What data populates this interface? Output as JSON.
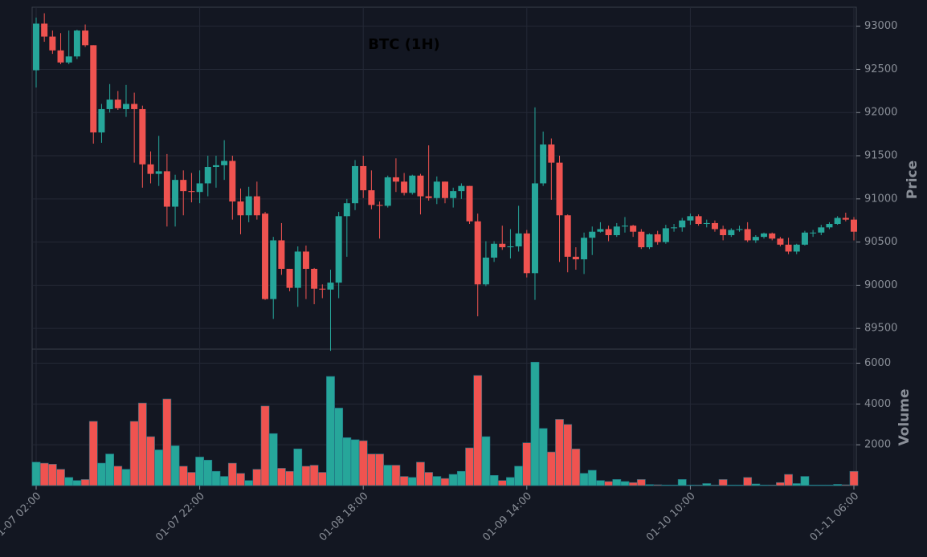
{
  "chart_data": {
    "type": "candlestick",
    "title": "BTC (1H)",
    "ylabel": "Price",
    "categories": [
      "01-07 02:00",
      null,
      null,
      null,
      null,
      null,
      null,
      null,
      null,
      null,
      null,
      null,
      null,
      null,
      null,
      null,
      null,
      null,
      null,
      null,
      "01-07 22:00",
      null,
      null,
      null,
      null,
      null,
      null,
      null,
      null,
      null,
      null,
      null,
      null,
      null,
      null,
      null,
      null,
      null,
      null,
      null,
      "01-08 18:00",
      null,
      null,
      null,
      null,
      null,
      null,
      null,
      null,
      null,
      null,
      null,
      null,
      null,
      null,
      null,
      null,
      null,
      null,
      null,
      "01-09 14:00",
      null,
      null,
      null,
      null,
      null,
      null,
      null,
      null,
      null,
      null,
      null,
      null,
      null,
      null,
      null,
      null,
      null,
      null,
      null,
      "01-10 10:00",
      null,
      null,
      null,
      null,
      null,
      null,
      null,
      null,
      null,
      null,
      null,
      null,
      null,
      null,
      null,
      null,
      null,
      null,
      null,
      "01-11 06:00"
    ],
    "open": [
      92490,
      93030,
      92880,
      92720,
      92580,
      92650,
      92950,
      92780,
      91770,
      92040,
      92150,
      92040,
      92100,
      92040,
      91400,
      91290,
      91320,
      90910,
      91220,
      91090,
      91080,
      91180,
      91370,
      91390,
      91440,
      90970,
      90810,
      91030,
      90830,
      89840,
      90520,
      90190,
      89970,
      90390,
      90190,
      89960,
      89950,
      90030,
      90800,
      90950,
      91380,
      91100,
      90930,
      90920,
      91250,
      91200,
      91070,
      91270,
      91030,
      91010,
      91200,
      91010,
      91090,
      91150,
      90740,
      90010,
      90320,
      90480,
      90440,
      90450,
      90600,
      90140,
      91180,
      91630,
      91420,
      90810,
      90330,
      90300,
      90550,
      90620,
      90650,
      90580,
      90680,
      90690,
      90620,
      90440,
      90590,
      90500,
      90660,
      90670,
      90750,
      90800,
      90710,
      90720,
      90650,
      90580,
      90640,
      90650,
      90520,
      90560,
      90600,
      90540,
      90470,
      90390,
      90470,
      90610,
      90610,
      90670,
      90710,
      90780,
      90760
    ],
    "high": [
      93100,
      93150,
      92950,
      92920,
      92950,
      92960,
      93020,
      92780,
      92100,
      92330,
      92250,
      92320,
      92230,
      92080,
      91550,
      91730,
      91520,
      91280,
      91330,
      91300,
      91330,
      91500,
      91500,
      91680,
      91500,
      91120,
      91140,
      91200,
      90850,
      90560,
      90720,
      90190,
      90450,
      90460,
      90200,
      90010,
      90180,
      90850,
      91000,
      91450,
      91500,
      91330,
      90970,
      91270,
      91470,
      91300,
      91280,
      91290,
      91620,
      91260,
      91200,
      91130,
      91180,
      91150,
      90830,
      90510,
      90510,
      90690,
      90650,
      90920,
      90640,
      92060,
      91780,
      91700,
      91500,
      90820,
      90440,
      90610,
      90680,
      90730,
      90690,
      90720,
      90790,
      90700,
      90650,
      90600,
      90630,
      90700,
      90710,
      90780,
      90830,
      90820,
      90760,
      90750,
      90690,
      90660,
      90690,
      90730,
      90580,
      90610,
      90610,
      90560,
      90550,
      90480,
      90630,
      90640,
      90700,
      90730,
      90800,
      90840,
      90790
    ],
    "low": [
      92290,
      92820,
      92680,
      92560,
      92560,
      92620,
      92760,
      91640,
      91650,
      92000,
      92030,
      91950,
      91420,
      91130,
      91180,
      91150,
      90680,
      90680,
      90810,
      90960,
      90950,
      91030,
      91130,
      91220,
      90760,
      90590,
      90730,
      90760,
      89830,
      89610,
      90120,
      89930,
      89750,
      89840,
      89780,
      89850,
      89240,
      89850,
      90330,
      90870,
      91010,
      90880,
      90540,
      90900,
      91080,
      91040,
      91050,
      90820,
      90980,
      90940,
      90950,
      90900,
      91000,
      90710,
      89640,
      89990,
      90270,
      90410,
      90310,
      90390,
      90090,
      89830,
      91150,
      90990,
      90270,
      90150,
      90180,
      90130,
      90350,
      90610,
      90510,
      90560,
      90610,
      90560,
      90420,
      90420,
      90470,
      90480,
      90620,
      90620,
      90700,
      90690,
      90670,
      90620,
      90520,
      90560,
      90620,
      90500,
      90490,
      90540,
      90520,
      90450,
      90360,
      90360,
      90460,
      90560,
      90580,
      90650,
      90700,
      90740,
      90520
    ],
    "close": [
      93030,
      92880,
      92720,
      92580,
      92650,
      92950,
      92780,
      91770,
      92040,
      92150,
      92050,
      92100,
      92040,
      91400,
      91290,
      91320,
      90910,
      91220,
      91090,
      91080,
      91180,
      91370,
      91390,
      91440,
      90970,
      90810,
      91030,
      90810,
      89840,
      90520,
      90190,
      89970,
      90390,
      90190,
      89960,
      89950,
      90030,
      90800,
      90950,
      91380,
      91100,
      90930,
      90920,
      91250,
      91200,
      91070,
      91270,
      91030,
      91010,
      91200,
      91010,
      91090,
      91150,
      90740,
      90010,
      90320,
      90480,
      90440,
      90450,
      90600,
      90140,
      91180,
      91630,
      91420,
      90810,
      90330,
      90300,
      90550,
      90620,
      90650,
      90580,
      90680,
      90690,
      90620,
      90440,
      90590,
      90500,
      90660,
      90670,
      90750,
      90800,
      90710,
      90720,
      90650,
      90580,
      90640,
      90650,
      90520,
      90560,
      90600,
      90540,
      90470,
      90390,
      90470,
      90610,
      90610,
      90670,
      90710,
      90780,
      90760,
      90620
    ],
    "up_color": "#26a69a",
    "down_color": "#ef5350",
    "ylim": [
      89260,
      93220
    ],
    "yticks": [
      89500,
      90000,
      90500,
      91000,
      91500,
      92000,
      92500,
      93000
    ],
    "grid": true,
    "volume": {
      "label": "Volume",
      "values": [
        1150,
        1100,
        1050,
        800,
        400,
        250,
        300,
        3150,
        1100,
        1550,
        950,
        800,
        3150,
        4050,
        2400,
        1750,
        4250,
        1950,
        950,
        650,
        1400,
        1250,
        700,
        450,
        1100,
        600,
        250,
        800,
        3900,
        2550,
        850,
        700,
        1800,
        950,
        1000,
        650,
        5350,
        3800,
        2350,
        2250,
        2200,
        1550,
        1550,
        1000,
        1000,
        450,
        400,
        1150,
        650,
        450,
        350,
        550,
        700,
        1850,
        5400,
        2400,
        500,
        250,
        400,
        950,
        2100,
        6050,
        2800,
        1650,
        3250,
        3000,
        1800,
        600,
        750,
        250,
        200,
        300,
        200,
        150,
        300,
        50,
        40,
        30,
        30,
        300,
        30,
        30,
        100,
        30,
        300,
        30,
        30,
        400,
        80,
        30,
        30,
        150,
        550,
        100,
        450,
        30,
        30,
        30,
        60,
        40,
        700
      ],
      "ylim": [
        0,
        6650
      ],
      "yticks": [
        2000,
        4000,
        6000
      ]
    }
  }
}
